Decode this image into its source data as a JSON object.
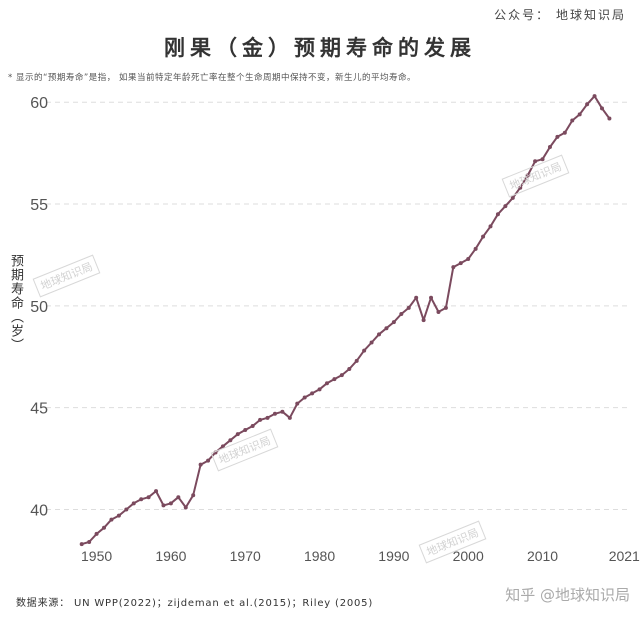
{
  "header": {
    "brand": "公众号： 地球知识局"
  },
  "title": "刚果（金）预期寿命的发展",
  "note": "* 显示的“预期寿命”是指， 如果当前特定年龄死亡率在整个生命周期中保持不变，新生儿的平均寿命。",
  "source": "数据来源： UN WPP(2022)；zijdeman et al.(2015)；Riley (2005)",
  "credit": "知乎 @地球知识局",
  "watermark": "地球知识局",
  "colors": {
    "line": "#7b4a5e",
    "grid": "#dddddd",
    "axis_text": "#555555"
  },
  "chart_data": {
    "type": "line",
    "ylabel": "预期寿命（岁）",
    "xlabel": "",
    "xlim": [
      1947.5,
      2021.5
    ],
    "ylim": [
      38.5,
      60.6
    ],
    "yticks": [
      40,
      45,
      50,
      55,
      60
    ],
    "xticks": [
      1950,
      1960,
      1970,
      1980,
      1990,
      2000,
      2010,
      2021
    ],
    "grid": "horizontal-dashed",
    "series": [
      {
        "points": [
          [
            1948,
            38.3
          ],
          [
            1949,
            38.4
          ],
          [
            1950,
            38.8
          ],
          [
            1951,
            39.1
          ],
          [
            1952,
            39.5
          ],
          [
            1953,
            39.7
          ],
          [
            1954,
            40.0
          ],
          [
            1955,
            40.3
          ],
          [
            1956,
            40.5
          ],
          [
            1957,
            40.6
          ],
          [
            1958,
            40.9
          ],
          [
            1959,
            40.2
          ],
          [
            1960,
            40.3
          ],
          [
            1961,
            40.6
          ],
          [
            1962,
            40.1
          ],
          [
            1963,
            40.7
          ],
          [
            1964,
            42.2
          ],
          [
            1965,
            42.4
          ],
          [
            1966,
            42.8
          ],
          [
            1967,
            43.1
          ],
          [
            1968,
            43.4
          ],
          [
            1969,
            43.7
          ],
          [
            1970,
            43.9
          ],
          [
            1971,
            44.1
          ],
          [
            1972,
            44.4
          ],
          [
            1973,
            44.5
          ],
          [
            1974,
            44.7
          ],
          [
            1975,
            44.8
          ],
          [
            1976,
            44.5
          ],
          [
            1977,
            45.2
          ],
          [
            1978,
            45.5
          ],
          [
            1979,
            45.7
          ],
          [
            1980,
            45.9
          ],
          [
            1981,
            46.2
          ],
          [
            1982,
            46.4
          ],
          [
            1983,
            46.6
          ],
          [
            1984,
            46.9
          ],
          [
            1985,
            47.3
          ],
          [
            1986,
            47.8
          ],
          [
            1987,
            48.2
          ],
          [
            1988,
            48.6
          ],
          [
            1989,
            48.9
          ],
          [
            1990,
            49.2
          ],
          [
            1991,
            49.6
          ],
          [
            1992,
            49.9
          ],
          [
            1993,
            50.4
          ],
          [
            1994,
            49.3
          ],
          [
            1995,
            50.4
          ],
          [
            1996,
            49.7
          ],
          [
            1997,
            49.9
          ],
          [
            1998,
            51.9
          ],
          [
            1999,
            52.1
          ],
          [
            2000,
            52.3
          ],
          [
            2001,
            52.8
          ],
          [
            2002,
            53.4
          ],
          [
            2003,
            53.9
          ],
          [
            2004,
            54.5
          ],
          [
            2005,
            54.9
          ],
          [
            2006,
            55.3
          ],
          [
            2007,
            55.8
          ],
          [
            2008,
            56.4
          ],
          [
            2009,
            57.1
          ],
          [
            2010,
            57.2
          ],
          [
            2011,
            57.8
          ],
          [
            2012,
            58.3
          ],
          [
            2013,
            58.5
          ],
          [
            2014,
            59.1
          ],
          [
            2015,
            59.4
          ],
          [
            2016,
            59.9
          ],
          [
            2017,
            60.3
          ],
          [
            2018,
            59.7
          ],
          [
            2019,
            59.2
          ]
        ]
      }
    ]
  }
}
